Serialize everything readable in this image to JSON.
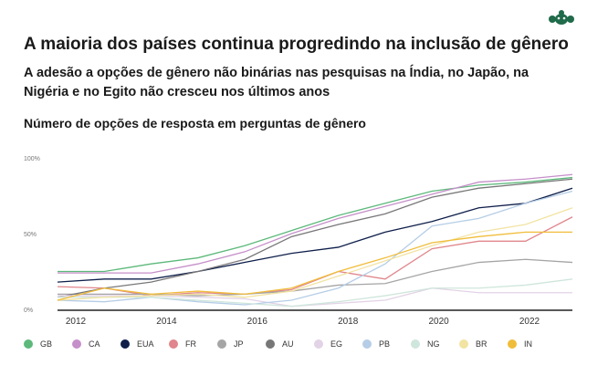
{
  "header": {
    "title": "A maioria dos países continua progredindo na inclusão de gênero",
    "subtitle": "A adesão a opções de gênero não binárias nas pesquisas na Índia, no Japão, na Nigéria e no Egito não cresceu nos últimos anos",
    "chart_title": "Número de opções de resposta em perguntas de gênero",
    "logo_icon": "surveymonkey-logo-icon",
    "logo_color": "#1f6b4a"
  },
  "chart_data": {
    "type": "line",
    "title": "Número de opções de resposta em perguntas de gênero",
    "x": [
      2012,
      2013,
      2014,
      2015,
      2016,
      2017,
      2018,
      2019,
      2020,
      2021,
      2022,
      2023
    ],
    "xticks": [
      "2012",
      "2014",
      "2016",
      "2018",
      "2020",
      "2022"
    ],
    "yticks": [
      "0%",
      "50%",
      "100%"
    ],
    "ylim": [
      0,
      100
    ],
    "grid": false,
    "legend": "bottom",
    "series": [
      {
        "name": "GB",
        "color": "#5cb97a",
        "values": [
          25,
          25,
          30,
          34,
          42,
          52,
          62,
          70,
          78,
          82,
          84,
          87
        ]
      },
      {
        "name": "CA",
        "color": "#c58fc9",
        "values": [
          24,
          24,
          24,
          30,
          38,
          50,
          60,
          68,
          76,
          84,
          86,
          89
        ]
      },
      {
        "name": "EUA",
        "color": "#0f1f4a",
        "values": [
          18,
          20,
          20,
          25,
          31,
          37,
          41,
          51,
          58,
          67,
          70,
          80
        ]
      },
      {
        "name": "FR",
        "color": "#e0868c",
        "values": [
          15,
          14,
          9,
          11,
          10,
          13,
          25,
          20,
          40,
          45,
          45,
          61
        ]
      },
      {
        "name": "JP",
        "color": "#a5a5a5",
        "values": [
          10,
          10,
          10,
          9,
          10,
          12,
          16,
          17,
          25,
          31,
          33,
          31
        ]
      },
      {
        "name": "AU",
        "color": "#777777",
        "values": [
          8,
          14,
          18,
          25,
          33,
          48,
          56,
          63,
          74,
          80,
          83,
          86
        ]
      },
      {
        "name": "EG",
        "color": "#e2d3e6",
        "values": [
          9,
          9,
          9,
          8,
          7,
          2,
          4,
          6,
          14,
          11,
          11,
          11
        ]
      },
      {
        "name": "PB",
        "color": "#b5cde6",
        "values": [
          6,
          5,
          8,
          5,
          3,
          6,
          14,
          30,
          55,
          60,
          70,
          78
        ]
      },
      {
        "name": "NG",
        "color": "#cfe6dc",
        "values": [
          8,
          8,
          8,
          6,
          4,
          2,
          5,
          9,
          14,
          14,
          16,
          20
        ]
      },
      {
        "name": "BR",
        "color": "#f2e3a2",
        "values": [
          6,
          8,
          9,
          10,
          8,
          12,
          22,
          32,
          42,
          51,
          56,
          67
        ]
      },
      {
        "name": "IN",
        "color": "#f0bd3a",
        "values": [
          6,
          14,
          10,
          12,
          10,
          14,
          25,
          34,
          44,
          48,
          51,
          51
        ]
      }
    ]
  }
}
